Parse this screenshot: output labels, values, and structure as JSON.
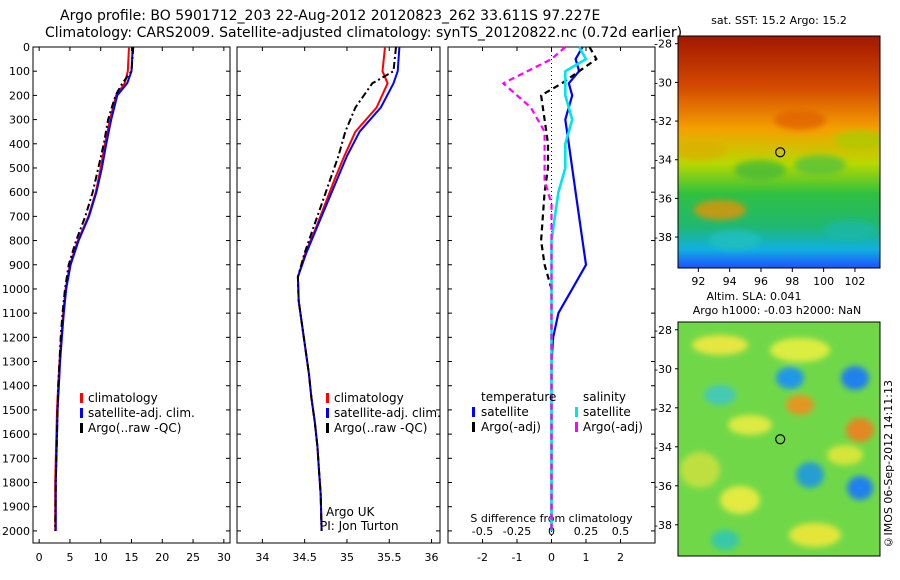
{
  "header": {
    "line1": "Argo profile: BO 5901712_203 22-Aug-2012 20120823_262 33.611S 97.227E",
    "line2": "Climatology: CARS2009. Satellite-adjusted climatology: synTS_20120822.nc (0.72d earlier)"
  },
  "depth_ticks": [
    "0",
    "100",
    "200",
    "300",
    "400",
    "500",
    "600",
    "700",
    "800",
    "900",
    "1000",
    "1100",
    "1200",
    "1300",
    "1400",
    "1500",
    "1600",
    "1700",
    "1800",
    "1900",
    "2000"
  ],
  "panels": {
    "temperature": {
      "xticks": [
        "0",
        "5",
        "10",
        "15",
        "20",
        "25",
        "30"
      ],
      "legend": [
        "climatology",
        "satellite-adj. clim.",
        "Argo(..raw -QC)"
      ]
    },
    "salinity": {
      "xticks": [
        "34",
        "34.5",
        "35",
        "35.5",
        "36"
      ],
      "legend": [
        "climatology",
        "satellite-adj. clim.",
        "Argo(..raw -QC)"
      ],
      "note1": "Argo UK",
      "note2": "PI: Jon Turton"
    },
    "difference": {
      "xticks": [
        "-2",
        "-1",
        "0",
        "1",
        "2"
      ],
      "xticks_s": [
        "-0.5",
        "-0.25",
        "0",
        "0.25",
        "0.5"
      ],
      "xlabel": "S difference from climatology",
      "temp_head": "temperature",
      "sal_head": "salinity",
      "legend_t": [
        "satellite",
        "Argo(-adj)"
      ],
      "legend_s": [
        "satellite",
        "Argo(-adj)"
      ]
    }
  },
  "maps": {
    "sst_title": "sat. SST: 15.2  Argo: 15.2",
    "sla_line1": "Altim. SLA: 0.041",
    "sla_line2": "Argo h1000: -0.03 h2000: NaN",
    "lat_ticks": [
      "-28",
      "-30",
      "-32",
      "-34",
      "-36",
      "-38"
    ],
    "lon_ticks": [
      "92",
      "94",
      "96",
      "98",
      "100",
      "102"
    ],
    "profile_lon": 97.227,
    "profile_lat": -33.611
  },
  "credit": "©IMOS 06-Sep-2012 14:11:13",
  "colors": {
    "climatology": "#ff0000",
    "satellite": "#0000ff",
    "argo": "#000000",
    "sal_sat": "#00e5e5",
    "sal_argo": "#ff00ff"
  },
  "chart_data": [
    {
      "type": "line",
      "xlim": [
        -1,
        31
      ],
      "ylim": [
        2050,
        0
      ],
      "series": [
        {
          "name": "climatology",
          "x": [
            14.6,
            14.4,
            13.9,
            12.5,
            11.5,
            10.7,
            10.0,
            9.2,
            8.0,
            6.3,
            5.0,
            4.3,
            3.9,
            3.6,
            3.3,
            3.1,
            2.9,
            2.8,
            2.7,
            2.6,
            2.6
          ],
          "y": [
            0,
            100,
            150,
            200,
            300,
            400,
            500,
            600,
            700,
            800,
            900,
            1000,
            1100,
            1200,
            1300,
            1400,
            1500,
            1600,
            1700,
            1800,
            2000
          ]
        },
        {
          "name": "satellite-adj. clim.",
          "x": [
            15.2,
            15.0,
            14.3,
            12.7,
            11.7,
            10.9,
            10.2,
            9.3,
            8.1,
            6.4,
            5.1,
            4.4,
            4.0,
            3.7,
            3.4,
            3.2,
            3.0,
            2.9,
            2.8,
            2.7,
            2.7
          ],
          "y": [
            0,
            100,
            150,
            200,
            300,
            400,
            500,
            600,
            700,
            800,
            900,
            1000,
            1100,
            1200,
            1300,
            1400,
            1500,
            1600,
            1700,
            1800,
            2000
          ]
        },
        {
          "name": "Argo(..raw -QC)",
          "x": [
            15.3,
            15.0,
            13.5,
            12.4,
            11.2,
            10.5,
            9.6,
            8.7,
            7.5,
            6.0,
            4.8,
            4.2,
            3.8,
            3.5,
            3.3,
            3.1,
            3.0,
            2.9,
            2.8,
            2.7,
            2.6
          ],
          "y": [
            0,
            100,
            150,
            200,
            300,
            400,
            500,
            600,
            700,
            800,
            900,
            1000,
            1100,
            1200,
            1300,
            1400,
            1500,
            1600,
            1700,
            1800,
            2000
          ]
        }
      ]
    },
    {
      "type": "line",
      "xlim": [
        33.7,
        36.1
      ],
      "ylim": [
        2050,
        0
      ],
      "series": [
        {
          "name": "climatology",
          "x": [
            35.45,
            35.42,
            35.48,
            35.35,
            35.1,
            34.97,
            34.85,
            34.74,
            34.63,
            34.51,
            34.42,
            34.43,
            34.47,
            34.51,
            34.55,
            34.58,
            34.62,
            34.65,
            34.67,
            34.69,
            34.7
          ],
          "y": [
            0,
            100,
            150,
            250,
            350,
            450,
            550,
            650,
            750,
            850,
            950,
            1050,
            1150,
            1250,
            1350,
            1450,
            1550,
            1650,
            1750,
            1850,
            2000
          ]
        },
        {
          "name": "satellite-adj. clim.",
          "x": [
            35.62,
            35.6,
            35.55,
            35.4,
            35.15,
            35.0,
            34.88,
            34.76,
            34.64,
            34.52,
            34.42,
            34.43,
            34.47,
            34.51,
            34.55,
            34.58,
            34.62,
            34.65,
            34.67,
            34.69,
            34.7
          ],
          "y": [
            0,
            100,
            150,
            250,
            350,
            450,
            550,
            650,
            750,
            850,
            950,
            1050,
            1150,
            1250,
            1350,
            1450,
            1550,
            1650,
            1750,
            1850,
            2000
          ]
        },
        {
          "name": "Argo(..raw -QC)",
          "x": [
            35.58,
            35.55,
            35.3,
            35.1,
            34.98,
            34.9,
            34.8,
            34.7,
            34.6,
            34.5,
            34.42,
            34.43,
            34.47,
            34.51,
            34.55,
            34.58,
            34.62,
            34.65,
            34.67,
            34.69,
            34.7
          ],
          "y": [
            0,
            100,
            150,
            250,
            350,
            450,
            550,
            650,
            750,
            850,
            950,
            1050,
            1150,
            1250,
            1350,
            1450,
            1550,
            1650,
            1750,
            1850,
            2000
          ]
        }
      ]
    },
    {
      "type": "line",
      "xlim": [
        -3,
        3
      ],
      "ylim": [
        2050,
        0
      ],
      "series": [
        {
          "name": "temperature satellite",
          "x": [
            0.9,
            0.7,
            0.8,
            0.5,
            0.6,
            0.4,
            0.5,
            0.6,
            0.7,
            0.9,
            1.0,
            0.6,
            0.2,
            0.05,
            0.0,
            0.0,
            0.0,
            0.0,
            0.0,
            0.0,
            0.0
          ],
          "y": [
            0,
            50,
            100,
            150,
            200,
            300,
            400,
            500,
            600,
            800,
            900,
            1000,
            1100,
            1200,
            1300,
            1400,
            1500,
            1600,
            1700,
            1800,
            2000
          ]
        },
        {
          "name": "temperature Argo(-adj)",
          "x": [
            1.1,
            1.3,
            0.8,
            0.3,
            -0.3,
            -0.2,
            -0.1,
            -0.1,
            -0.2,
            -0.3,
            -0.2,
            0.0,
            0.0,
            0.0,
            0.0,
            0.0,
            0.0,
            0.0,
            0.0,
            0.0,
            0.0
          ],
          "y": [
            0,
            50,
            100,
            150,
            200,
            300,
            400,
            500,
            600,
            800,
            900,
            1000,
            1100,
            1200,
            1300,
            1400,
            1500,
            1600,
            1700,
            1800,
            2000
          ]
        },
        {
          "name": "salinity satellite",
          "x": [
            0.2,
            0.25,
            0.1,
            0.1,
            0.15,
            0.1,
            0.1,
            0.05,
            0.0,
            0.0,
            0.0,
            0.0,
            0.0,
            0.0,
            0.0
          ],
          "y": [
            0,
            50,
            100,
            200,
            300,
            400,
            500,
            600,
            800,
            1000,
            1200,
            1400,
            1600,
            1800,
            2000
          ]
        },
        {
          "name": "salinity Argo(-adj)",
          "x": [
            0.1,
            0.0,
            -0.35,
            -0.15,
            -0.05,
            -0.05,
            -0.05,
            0.0,
            0.0,
            0.0,
            0.0,
            0.0,
            0.0,
            0.0,
            0.0
          ],
          "y": [
            0,
            50,
            150,
            250,
            350,
            450,
            550,
            650,
            800,
            1000,
            1200,
            1400,
            1600,
            1800,
            2000
          ]
        }
      ]
    }
  ]
}
